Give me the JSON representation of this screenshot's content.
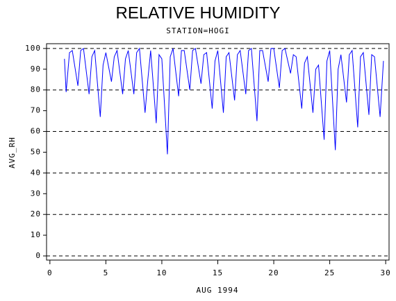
{
  "chart_data": {
    "type": "line",
    "title": "RELATIVE HUMIDITY",
    "subtitle": "STATION=HOGI",
    "x_label": "AUG 1994",
    "y_label": "AVG_RH",
    "xlim": [
      -0.3,
      30.3
    ],
    "xticks": [
      0,
      5,
      10,
      15,
      20,
      25,
      30
    ],
    "ylim": [
      -2,
      102.3
    ],
    "yticks": [
      0,
      10,
      20,
      30,
      40,
      50,
      60,
      70,
      80,
      90,
      100
    ],
    "ygrid": [
      0,
      20,
      40,
      60,
      80,
      100
    ],
    "series": [
      {
        "color": "#0000ff",
        "x": [
          1.3,
          1.45,
          1.75,
          2,
          2.5,
          2.75,
          3,
          3.5,
          3.75,
          4,
          4.5,
          4.75,
          5,
          5.5,
          5.75,
          6,
          6.5,
          6.75,
          7,
          7.5,
          7.75,
          8,
          8.5,
          8.75,
          9,
          9.5,
          9.75,
          10,
          10.5,
          10.75,
          11,
          11.5,
          11.75,
          12,
          12.5,
          12.75,
          13,
          13.5,
          13.75,
          14,
          14.5,
          14.75,
          15,
          15.5,
          15.75,
          16,
          16.5,
          16.75,
          17,
          17.5,
          17.75,
          18,
          18.5,
          18.75,
          19,
          19.5,
          19.75,
          20,
          20.5,
          20.75,
          21,
          21.5,
          21.75,
          22,
          22.5,
          22.75,
          23,
          23.5,
          23.75,
          24,
          24.5,
          24.75,
          25,
          25.5,
          25.75,
          26,
          26.5,
          26.75,
          27,
          27.5,
          27.75,
          28,
          28.5,
          28.75,
          29,
          29.5,
          29.8
        ],
        "values": [
          95,
          79,
          98,
          99,
          82,
          99,
          100,
          78,
          96,
          99,
          67,
          92,
          98,
          84,
          96,
          99,
          78,
          95,
          99,
          78,
          98,
          100,
          69,
          85,
          99,
          64,
          97,
          95,
          49,
          96,
          100,
          77,
          99,
          99,
          80,
          99,
          100,
          83,
          97,
          98,
          71,
          94,
          99,
          69,
          96,
          98,
          75,
          97,
          99,
          78,
          99,
          100,
          65,
          99,
          99,
          84,
          100,
          100,
          81,
          99,
          100,
          88,
          97,
          96,
          71,
          93,
          96,
          69,
          90,
          92,
          56,
          94,
          99,
          51,
          90,
          97,
          74,
          97,
          99,
          62,
          96,
          98,
          68,
          97,
          96,
          67,
          94
        ]
      }
    ]
  }
}
